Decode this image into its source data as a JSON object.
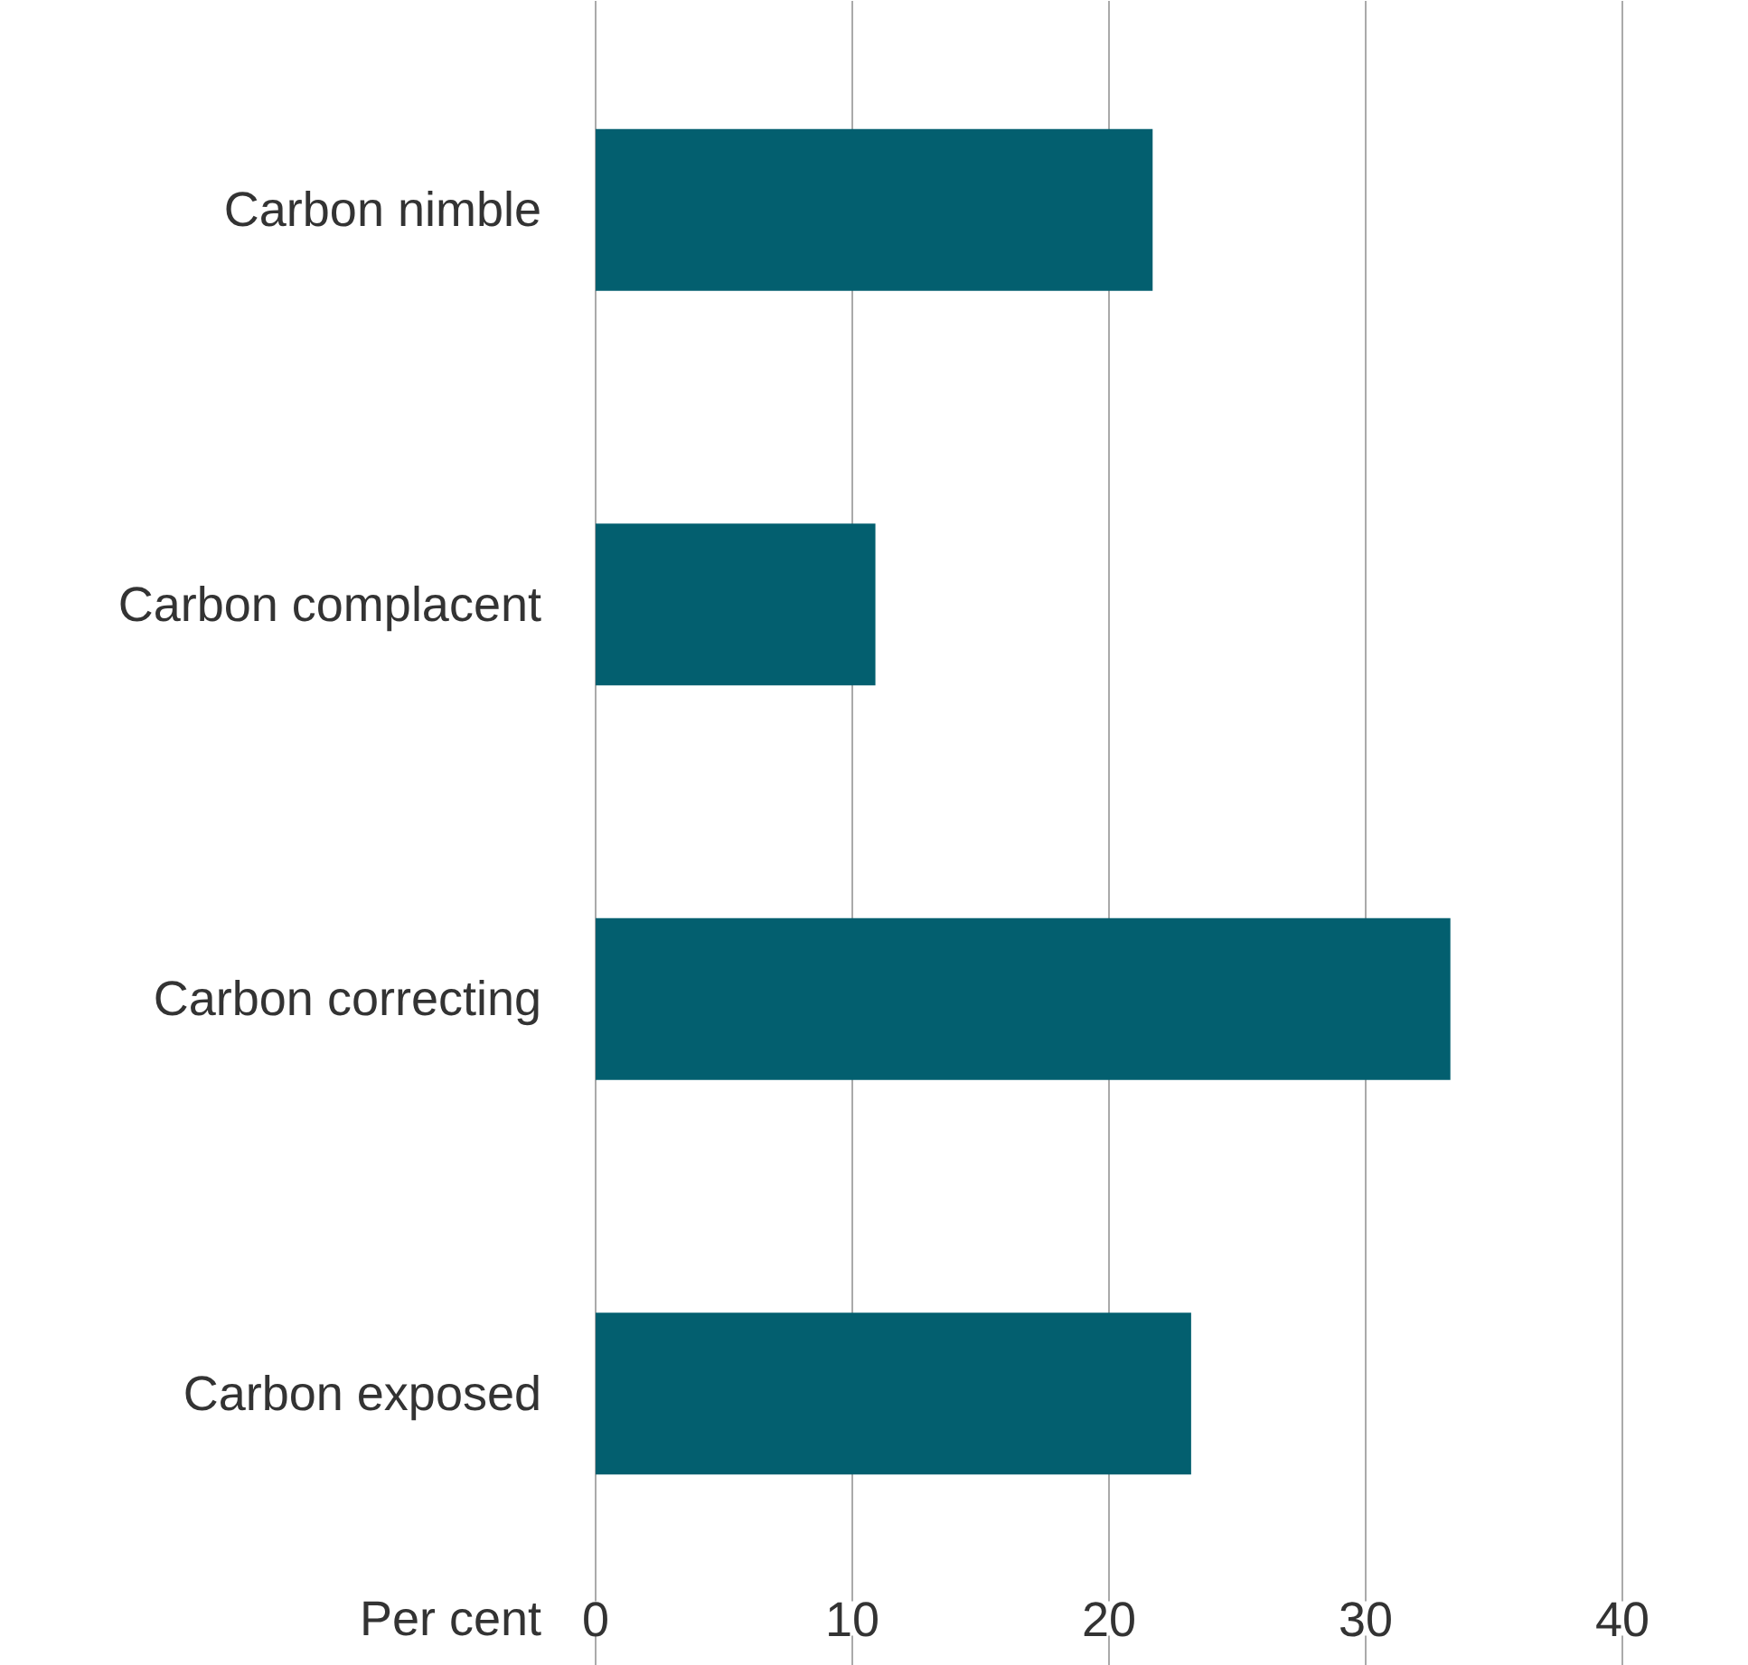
{
  "chart_data": {
    "type": "bar",
    "orientation": "horizontal",
    "xlabel": "Per cent",
    "categories": [
      "Carbon nimble",
      "Carbon complacent",
      "Carbon correcting",
      "Carbon exposed"
    ],
    "values": [
      21.7,
      10.9,
      33.3,
      23.2
    ],
    "color": "#035f6f",
    "xlim": [
      0,
      40
    ],
    "xticks": [
      0,
      10,
      20,
      30,
      40
    ],
    "grid": "x"
  }
}
